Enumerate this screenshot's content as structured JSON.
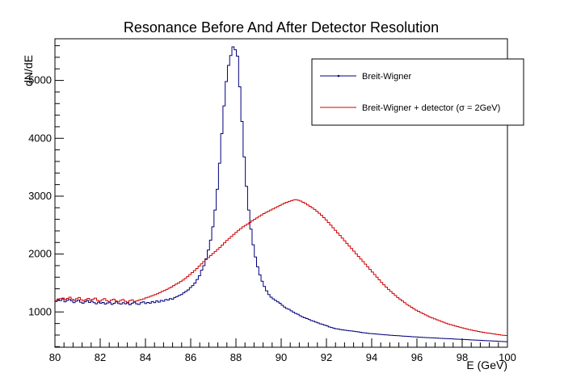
{
  "chart_data": {
    "type": "line",
    "title": "Resonance Before And After Detector Resolution",
    "xlabel": "E (GeV)",
    "ylabel": "dN/dE",
    "xlim": [
      80,
      100
    ],
    "ylim": [
      390,
      5720
    ],
    "x_ticks": [
      "80",
      "82",
      "84",
      "86",
      "88",
      "90",
      "92",
      "94",
      "96",
      "98",
      "100"
    ],
    "y_ticks": [
      "1000",
      "2000",
      "3000",
      "4000",
      "5000"
    ],
    "grid": false,
    "legend_position": "top-right",
    "bin_range": [
      80,
      100
    ],
    "series": [
      {
        "name": "Breit-Wigner",
        "color": "#00007a",
        "values": [
          1180,
          1210,
          1195,
          1225,
          1175,
          1200,
          1215,
          1190,
          1160,
          1185,
          1205,
          1170,
          1150,
          1175,
          1195,
          1165,
          1185,
          1160,
          1140,
          1170,
          1150,
          1165,
          1135,
          1155,
          1160,
          1130,
          1150,
          1175,
          1145,
          1135,
          1160,
          1140,
          1155,
          1125,
          1150,
          1170,
          1140,
          1130,
          1160,
          1175,
          1145,
          1165,
          1150,
          1180,
          1160,
          1190,
          1170,
          1200,
          1185,
          1215,
          1205,
          1230,
          1220,
          1250,
          1265,
          1285,
          1300,
          1330,
          1355,
          1380,
          1420,
          1455,
          1500,
          1560,
          1625,
          1720,
          1800,
          1920,
          2070,
          2240,
          2470,
          2760,
          3120,
          3570,
          4080,
          4560,
          4980,
          5260,
          5430,
          5580,
          5530,
          5420,
          4890,
          4290,
          3680,
          3170,
          2760,
          2430,
          2160,
          1950,
          1780,
          1640,
          1530,
          1440,
          1365,
          1300,
          1255,
          1225,
          1200,
          1175,
          1150,
          1115,
          1085,
          1060,
          1045,
          1020,
          995,
          975,
          960,
          935,
          915,
          900,
          885,
          870,
          850,
          840,
          825,
          810,
          795,
          785,
          770,
          760,
          740,
          730,
          720,
          710,
          705,
          695,
          690,
          685,
          680,
          675,
          670,
          665,
          660,
          655,
          648,
          642,
          638,
          632,
          628,
          625,
          622,
          618,
          615,
          612,
          608,
          605,
          602,
          598,
          595,
          592,
          590,
          588,
          585,
          582,
          580,
          578,
          575,
          572,
          570,
          568,
          565,
          562,
          560,
          558,
          556,
          554,
          552,
          550,
          548,
          546,
          544,
          542,
          540,
          538,
          536,
          534,
          532,
          530,
          528,
          526,
          524,
          522,
          520,
          518,
          516,
          514,
          512,
          510,
          508,
          506,
          504,
          502,
          500,
          498,
          496,
          494,
          492,
          490,
          488,
          486
        ]
      },
      {
        "name": "Breit-Wigner + detector (σ = 2GeV)",
        "color": "#d00000",
        "values": [
          1200,
          1225,
          1230,
          1240,
          1215,
          1235,
          1255,
          1220,
          1205,
          1230,
          1250,
          1210,
          1195,
          1215,
          1235,
          1205,
          1220,
          1240,
          1200,
          1185,
          1210,
          1230,
          1195,
          1180,
          1205,
          1220,
          1190,
          1175,
          1200,
          1215,
          1185,
          1170,
          1195,
          1210,
          1180,
          1190,
          1205,
          1215,
          1225,
          1245,
          1255,
          1270,
          1285,
          1300,
          1315,
          1335,
          1355,
          1370,
          1390,
          1410,
          1430,
          1455,
          1480,
          1500,
          1525,
          1550,
          1580,
          1610,
          1645,
          1680,
          1715,
          1750,
          1790,
          1830,
          1870,
          1905,
          1940,
          1975,
          2010,
          2045,
          2080,
          2115,
          2155,
          2195,
          2235,
          2270,
          2305,
          2340,
          2375,
          2410,
          2440,
          2470,
          2495,
          2520,
          2545,
          2575,
          2600,
          2625,
          2650,
          2675,
          2700,
          2720,
          2740,
          2760,
          2780,
          2800,
          2820,
          2840,
          2860,
          2880,
          2895,
          2910,
          2920,
          2935,
          2940,
          2930,
          2915,
          2895,
          2875,
          2850,
          2825,
          2800,
          2770,
          2740,
          2705,
          2670,
          2630,
          2590,
          2545,
          2500,
          2455,
          2410,
          2365,
          2320,
          2275,
          2230,
          2185,
          2140,
          2095,
          2050,
          2005,
          1960,
          1915,
          1870,
          1825,
          1780,
          1735,
          1690,
          1645,
          1600,
          1555,
          1510,
          1470,
          1430,
          1390,
          1355,
          1320,
          1285,
          1250,
          1220,
          1190,
          1160,
          1130,
          1105,
          1080,
          1055,
          1030,
          1010,
          990,
          970,
          950,
          930,
          910,
          895,
          880,
          865,
          850,
          835,
          820,
          805,
          792,
          780,
          768,
          756,
          745,
          735,
          725,
          715,
          705,
          695,
          686,
          678,
          670,
          662,
          655,
          648,
          642,
          636,
          630,
          624,
          618,
          612,
          606,
          600,
          596,
          592
        ]
      }
    ]
  }
}
